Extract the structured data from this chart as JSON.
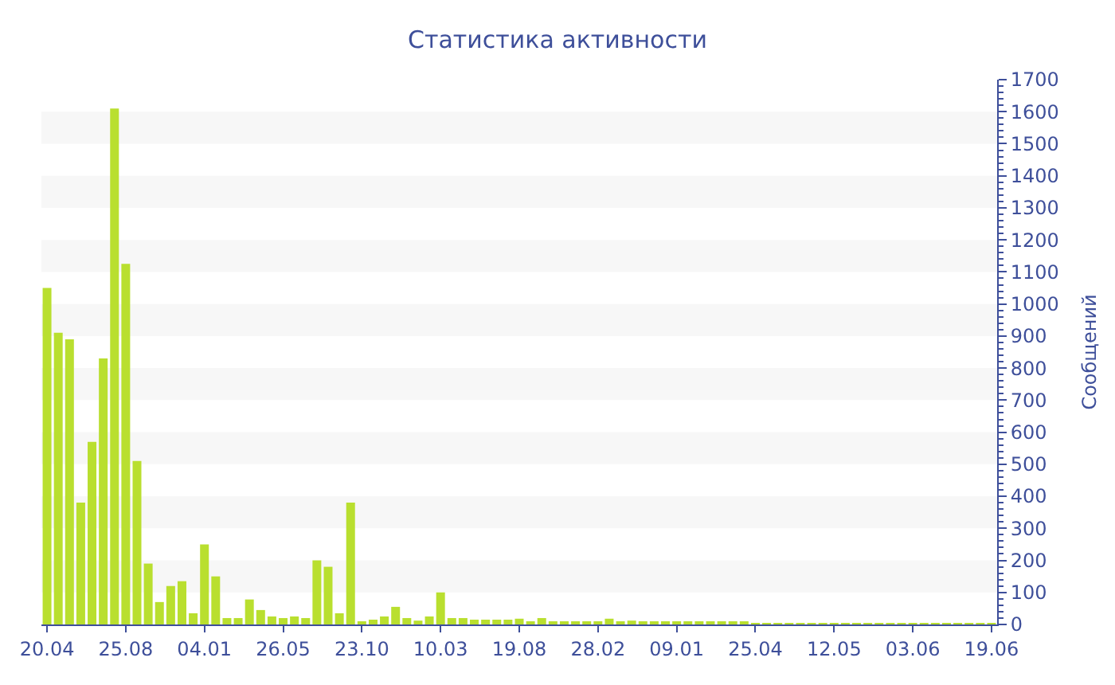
{
  "chart_data": {
    "type": "bar",
    "title": "Статистика активности",
    "ylabel": "Сообщений",
    "categories": [
      "20.04",
      null,
      null,
      null,
      null,
      null,
      null,
      "25.08",
      null,
      null,
      null,
      null,
      null,
      null,
      "04.01",
      null,
      null,
      null,
      null,
      null,
      null,
      "26.05",
      null,
      null,
      null,
      null,
      null,
      null,
      "23.10",
      null,
      null,
      null,
      null,
      null,
      null,
      "10.03",
      null,
      null,
      null,
      null,
      null,
      null,
      "19.08",
      null,
      null,
      null,
      null,
      null,
      null,
      "28.02",
      null,
      null,
      null,
      null,
      null,
      null,
      "09.01",
      null,
      null,
      null,
      null,
      null,
      null,
      "25.04",
      null,
      null,
      null,
      null,
      null,
      null,
      "12.05",
      null,
      null,
      null,
      null,
      null,
      null,
      "03.06",
      null,
      null,
      null,
      null,
      null,
      null,
      "19.06"
    ],
    "values": [
      1050,
      910,
      890,
      380,
      570,
      830,
      1610,
      1125,
      510,
      190,
      70,
      120,
      135,
      35,
      250,
      150,
      20,
      20,
      78,
      45,
      25,
      20,
      25,
      20,
      200,
      180,
      35,
      380,
      10,
      15,
      25,
      55,
      20,
      12,
      25,
      100,
      20,
      20,
      15,
      15,
      15,
      15,
      18,
      10,
      20,
      10,
      8,
      8,
      8,
      7,
      18,
      8,
      12,
      8,
      8,
      7,
      7,
      5,
      5,
      5,
      5,
      5,
      5,
      3,
      3,
      3,
      3,
      3,
      3,
      3,
      3,
      3,
      3,
      3,
      3,
      3,
      3,
      3,
      3,
      3,
      3,
      3,
      3,
      3,
      3
    ],
    "color": "#b9df2f",
    "ylim": [
      0,
      1700
    ],
    "yticks": [
      0,
      100,
      200,
      300,
      400,
      500,
      600,
      700,
      800,
      900,
      1000,
      1100,
      1200,
      1300,
      1400,
      1500,
      1600,
      1700
    ],
    "bands": [
      {
        "axis": "y",
        "from": 100,
        "to": 200,
        "color": "#f7f7f7"
      },
      {
        "axis": "y",
        "from": 300,
        "to": 400,
        "color": "#f7f7f7"
      },
      {
        "axis": "y",
        "from": 500,
        "to": 600,
        "color": "#f7f7f7"
      },
      {
        "axis": "y",
        "from": 700,
        "to": 800,
        "color": "#f7f7f7"
      },
      {
        "axis": "y",
        "from": 900,
        "to": 1000,
        "color": "#f7f7f7"
      },
      {
        "axis": "y",
        "from": 1100,
        "to": 1200,
        "color": "#f7f7f7"
      },
      {
        "axis": "y",
        "from": 1300,
        "to": 1400,
        "color": "#f7f7f7"
      },
      {
        "axis": "y",
        "from": 1500,
        "to": 1600,
        "color": "#f7f7f7"
      }
    ],
    "grid": false
  }
}
